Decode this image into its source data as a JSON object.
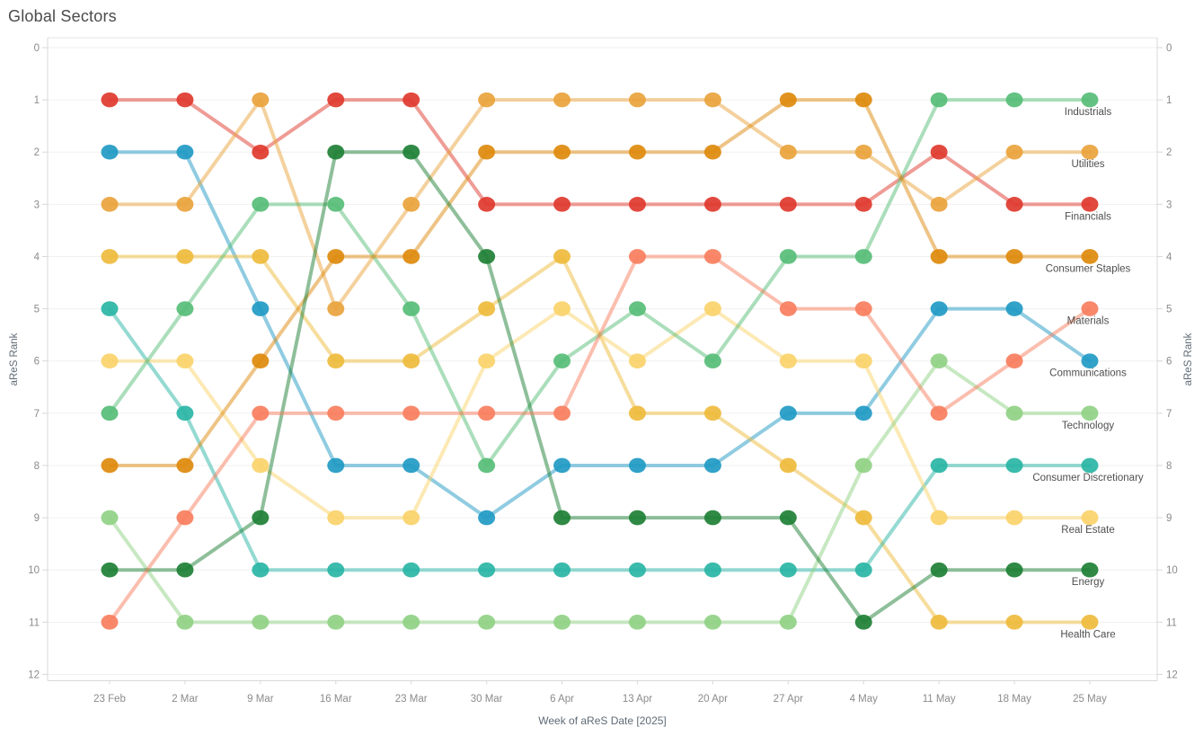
{
  "title": "Global Sectors",
  "chart_data": {
    "type": "line",
    "subtype": "bump-rank-chart",
    "title": "Global Sectors",
    "xlabel": "Week of aReS Date [2025]",
    "ylabel_left": "aReS Rank",
    "ylabel_right": "aReS Rank",
    "ylim": [
      0,
      12
    ],
    "y_inverted_rank_axis": true,
    "yticks": [
      0,
      1,
      2,
      3,
      4,
      5,
      6,
      7,
      8,
      9,
      10,
      11,
      12
    ],
    "grid": true,
    "legend_position": "right-inline-labels",
    "x": [
      "23 Feb",
      "2 Mar",
      "9 Mar",
      "16 Mar",
      "23 Mar",
      "30 Mar",
      "6 Apr",
      "13 Apr",
      "20 Apr",
      "27 Apr",
      "4 May",
      "11 May",
      "18 May",
      "25 May"
    ],
    "series": [
      {
        "name": "Financials",
        "color": "#e03a2e",
        "ranks": [
          1,
          1,
          2,
          1,
          1,
          3,
          3,
          3,
          3,
          3,
          3,
          2,
          3,
          3
        ]
      },
      {
        "name": "Communications",
        "color": "#219ac4",
        "ranks": [
          2,
          2,
          5,
          8,
          8,
          9,
          8,
          8,
          8,
          7,
          7,
          5,
          5,
          6
        ]
      },
      {
        "name": "Utilities",
        "color": "#e9a33c",
        "ranks": [
          3,
          3,
          1,
          5,
          3,
          1,
          1,
          1,
          1,
          2,
          2,
          3,
          2,
          2
        ]
      },
      {
        "name": "Health Care",
        "color": "#eebb3c",
        "ranks": [
          4,
          4,
          4,
          6,
          6,
          5,
          4,
          7,
          7,
          8,
          9,
          11,
          11,
          11
        ]
      },
      {
        "name": "Consumer Discretionary",
        "color": "#2ab5a5",
        "ranks": [
          5,
          7,
          10,
          10,
          10,
          10,
          10,
          10,
          10,
          10,
          10,
          8,
          8,
          8
        ]
      },
      {
        "name": "Real Estate",
        "color": "#fad36a",
        "ranks": [
          6,
          6,
          8,
          9,
          9,
          6,
          5,
          6,
          5,
          6,
          6,
          9,
          9,
          9
        ]
      },
      {
        "name": "Industrials",
        "color": "#57bd77",
        "ranks": [
          7,
          5,
          3,
          3,
          5,
          8,
          6,
          5,
          6,
          4,
          4,
          1,
          1,
          1
        ]
      },
      {
        "name": "Consumer Staples",
        "color": "#de8a0d",
        "ranks": [
          8,
          8,
          6,
          4,
          4,
          2,
          2,
          2,
          2,
          1,
          1,
          4,
          4,
          4
        ]
      },
      {
        "name": "Technology",
        "color": "#90d184",
        "ranks": [
          9,
          11,
          11,
          11,
          11,
          11,
          11,
          11,
          11,
          11,
          8,
          6,
          7,
          7
        ]
      },
      {
        "name": "Energy",
        "color": "#1e8035",
        "ranks": [
          10,
          10,
          9,
          2,
          2,
          4,
          9,
          9,
          9,
          9,
          11,
          10,
          10,
          10
        ]
      },
      {
        "name": "Materials",
        "color": "#f87e5e",
        "ranks": [
          11,
          9,
          7,
          7,
          7,
          7,
          7,
          4,
          4,
          5,
          5,
          7,
          6,
          5
        ]
      }
    ],
    "colors": {
      "grid": "#f0f0f0",
      "axis_border": "#d8d8d8",
      "tick_text": "#8b8b8b",
      "series_label_text": "#4f4f4f"
    }
  }
}
